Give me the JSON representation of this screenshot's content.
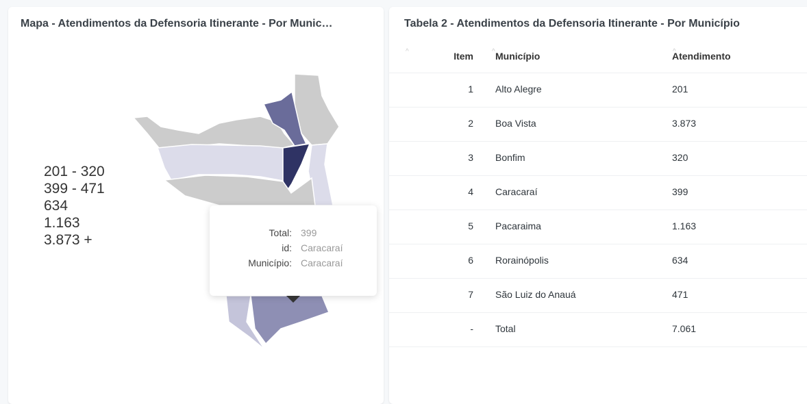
{
  "map_panel": {
    "title": "Mapa - Atendimentos da Defensoria Itinerante - Por Munic…",
    "legend": [
      "201 - 320",
      "399 - 471",
      "634",
      "1.163",
      "3.873 +"
    ],
    "tooltip": {
      "rows": [
        {
          "label": "Total:",
          "value": "399"
        },
        {
          "label": "id:",
          "value": "Caracaraí"
        },
        {
          "label": "Município:",
          "value": "Caracaraí"
        }
      ]
    }
  },
  "table": {
    "title": "Tabela 2 - Atendimentos da Defensoria Itinerante - Por Município",
    "columns": [
      "Item",
      "Município",
      "Atendimento"
    ],
    "rows": [
      [
        "1",
        "Alto Alegre",
        "201"
      ],
      [
        "2",
        "Boa Vista",
        "3.873"
      ],
      [
        "3",
        "Bonfim",
        "320"
      ],
      [
        "4",
        "Caracaraí",
        "399"
      ],
      [
        "5",
        "Pacaraima",
        "1.163"
      ],
      [
        "6",
        "Rorainópolis",
        "634"
      ],
      [
        "7",
        "São Luiz do Anauá",
        "471"
      ],
      [
        "-",
        "Total",
        "7.061"
      ]
    ]
  }
}
